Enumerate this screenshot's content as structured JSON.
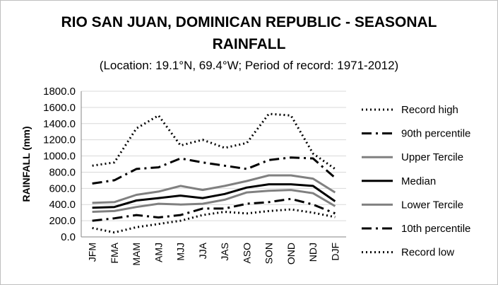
{
  "chart_data": {
    "type": "line",
    "title_line1": "RIO SAN JUAN, DOMINICAN REPUBLIC - SEASONAL",
    "title_line2": "RAINFALL",
    "subtitle": "(Location: 19.1°N, 69.4°W; Period of record: 1971-2012)",
    "xlabel": "",
    "ylabel": "RAINFALL (mm)",
    "ylim": [
      0,
      1800
    ],
    "yticks": [
      "0.0",
      "200.0",
      "400.0",
      "600.0",
      "800.0",
      "1000.0",
      "1200.0",
      "1400.0",
      "1600.0",
      "1800.0"
    ],
    "grid": true,
    "legend_position": "right",
    "categories": [
      "JFM",
      "FMA",
      "MAM",
      "AMJ",
      "MJJ",
      "JJA",
      "JAS",
      "ASO",
      "SON",
      "OND",
      "NDJ",
      "DJF"
    ],
    "series": [
      {
        "name": "Record high",
        "style": "dotted",
        "color": "#000000",
        "values": [
          880,
          920,
          1340,
          1500,
          1130,
          1200,
          1100,
          1160,
          1520,
          1500,
          1030,
          840
        ]
      },
      {
        "name": "90th percentile",
        "style": "dashdot",
        "color": "#000000",
        "values": [
          660,
          700,
          840,
          860,
          970,
          920,
          880,
          840,
          950,
          980,
          970,
          730
        ]
      },
      {
        "name": "Upper Tercile",
        "style": "solid",
        "color": "#808080",
        "values": [
          420,
          430,
          520,
          560,
          630,
          580,
          630,
          690,
          760,
          760,
          720,
          550
        ]
      },
      {
        "name": "Median",
        "style": "solid",
        "color": "#000000",
        "values": [
          360,
          370,
          450,
          480,
          510,
          480,
          530,
          610,
          650,
          650,
          630,
          440
        ]
      },
      {
        "name": "Lower Tercile",
        "style": "solid",
        "color": "#808080",
        "values": [
          310,
          320,
          370,
          410,
          400,
          410,
          460,
          550,
          570,
          580,
          540,
          380
        ]
      },
      {
        "name": "10th percentile",
        "style": "dashdot",
        "color": "#000000",
        "values": [
          200,
          230,
          270,
          240,
          270,
          350,
          350,
          410,
          430,
          470,
          400,
          290
        ]
      },
      {
        "name": "Record low",
        "style": "dotted",
        "color": "#000000",
        "values": [
          110,
          55,
          120,
          160,
          200,
          270,
          310,
          290,
          320,
          340,
          300,
          245
        ]
      }
    ]
  }
}
